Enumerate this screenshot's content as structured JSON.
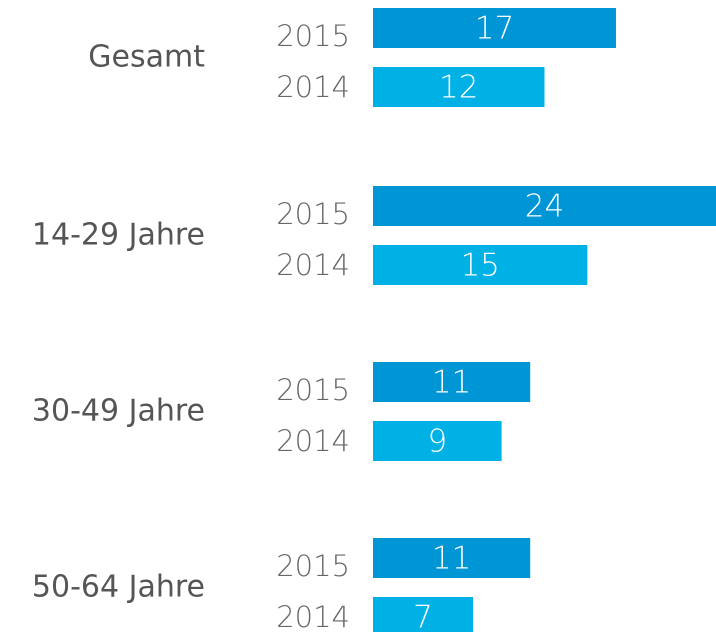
{
  "chart_data": {
    "type": "bar",
    "orientation": "horizontal",
    "categories": [
      "Gesamt",
      "14-29 Jahre",
      "30-49 Jahre",
      "50-64 Jahre"
    ],
    "series": [
      {
        "name": "2015",
        "color": "#0096d6",
        "values": [
          17,
          24,
          11,
          11
        ]
      },
      {
        "name": "2014",
        "color": "#00b1e6",
        "values": [
          12,
          15,
          9,
          7
        ]
      }
    ],
    "xlim": [
      0,
      24
    ]
  }
}
